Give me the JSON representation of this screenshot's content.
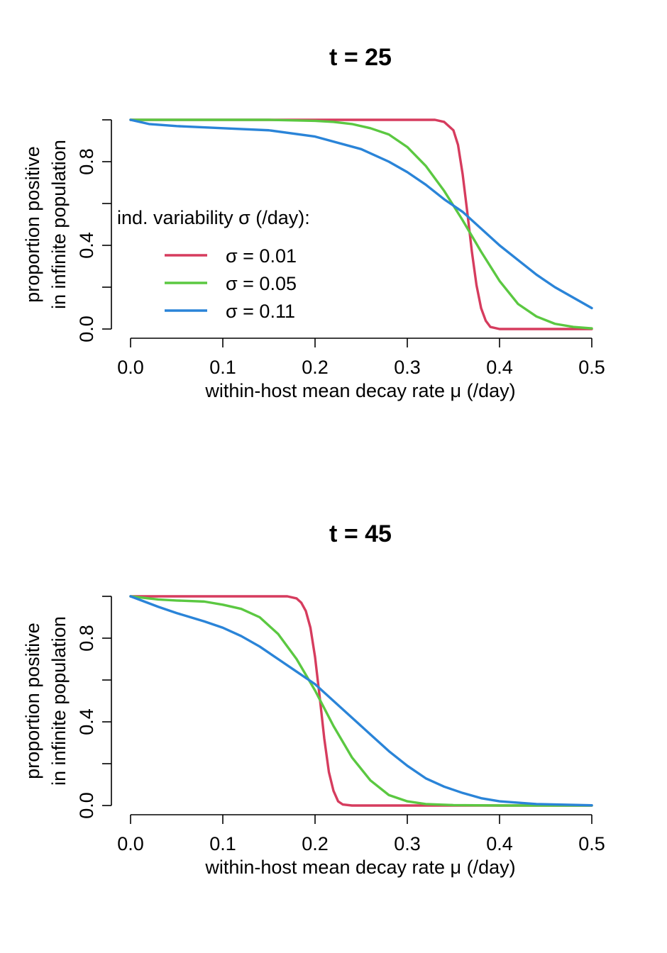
{
  "chart_data": [
    {
      "type": "line",
      "title": "t = 25",
      "xlabel": "within-host mean decay rate μ (/day)",
      "ylabel_lines": [
        "proportion positive",
        "in infinite population"
      ],
      "xlim": [
        0,
        0.5
      ],
      "ylim": [
        0,
        1
      ],
      "x_ticks": [
        0.0,
        0.1,
        0.2,
        0.3,
        0.4,
        0.5
      ],
      "x_tick_labels": [
        "0.0",
        "0.1",
        "0.2",
        "0.3",
        "0.4",
        "0.5"
      ],
      "y_ticks": [
        0.0,
        0.2,
        0.4,
        0.6,
        0.8,
        1.0
      ],
      "y_tick_labels": [
        "0.0",
        "",
        "0.4",
        "",
        "0.8",
        ""
      ],
      "legend": {
        "title": "ind. variability σ (/day):",
        "position": "left-middle",
        "entries": [
          "σ = 0.01",
          "σ = 0.05",
          "σ = 0.11"
        ]
      },
      "series": [
        {
          "name": "σ = 0.01",
          "color": "#D63C5E",
          "x": [
            0,
            0.05,
            0.1,
            0.15,
            0.2,
            0.25,
            0.3,
            0.33,
            0.34,
            0.35,
            0.355,
            0.36,
            0.365,
            0.37,
            0.375,
            0.38,
            0.385,
            0.39,
            0.4,
            0.45,
            0.5
          ],
          "y": [
            1.0,
            1.0,
            1.0,
            1.0,
            1.0,
            1.0,
            1.0,
            1.0,
            0.99,
            0.95,
            0.88,
            0.74,
            0.56,
            0.37,
            0.21,
            0.1,
            0.04,
            0.01,
            0.0,
            0.0,
            0.0
          ]
        },
        {
          "name": "σ = 0.05",
          "color": "#5BC841",
          "x": [
            0,
            0.05,
            0.1,
            0.15,
            0.2,
            0.22,
            0.24,
            0.26,
            0.28,
            0.3,
            0.32,
            0.34,
            0.36,
            0.38,
            0.4,
            0.42,
            0.44,
            0.46,
            0.48,
            0.5
          ],
          "y": [
            1.0,
            1.0,
            1.0,
            1.0,
            0.995,
            0.99,
            0.98,
            0.96,
            0.93,
            0.87,
            0.78,
            0.66,
            0.52,
            0.37,
            0.23,
            0.12,
            0.06,
            0.025,
            0.01,
            0.003
          ]
        },
        {
          "name": "σ = 0.11",
          "color": "#2A84D8",
          "x": [
            0,
            0.02,
            0.05,
            0.1,
            0.15,
            0.2,
            0.25,
            0.28,
            0.3,
            0.32,
            0.34,
            0.36,
            0.38,
            0.4,
            0.42,
            0.44,
            0.46,
            0.48,
            0.5
          ],
          "y": [
            1.0,
            0.98,
            0.97,
            0.96,
            0.95,
            0.92,
            0.86,
            0.8,
            0.75,
            0.69,
            0.62,
            0.56,
            0.48,
            0.4,
            0.33,
            0.26,
            0.2,
            0.15,
            0.1
          ]
        }
      ]
    },
    {
      "type": "line",
      "title": "t = 45",
      "xlabel": "within-host mean decay rate μ (/day)",
      "ylabel_lines": [
        "proportion positive",
        "in infinite population"
      ],
      "xlim": [
        0,
        0.5
      ],
      "ylim": [
        0,
        1
      ],
      "x_ticks": [
        0.0,
        0.1,
        0.2,
        0.3,
        0.4,
        0.5
      ],
      "x_tick_labels": [
        "0.0",
        "0.1",
        "0.2",
        "0.3",
        "0.4",
        "0.5"
      ],
      "y_ticks": [
        0.0,
        0.2,
        0.4,
        0.6,
        0.8,
        1.0
      ],
      "y_tick_labels": [
        "0.0",
        "",
        "0.4",
        "",
        "0.8",
        ""
      ],
      "series": [
        {
          "name": "σ = 0.01",
          "color": "#D63C5E",
          "x": [
            0,
            0.05,
            0.1,
            0.15,
            0.17,
            0.18,
            0.185,
            0.19,
            0.195,
            0.2,
            0.205,
            0.21,
            0.215,
            0.22,
            0.225,
            0.23,
            0.24,
            0.3,
            0.4,
            0.5
          ],
          "y": [
            1.0,
            1.0,
            1.0,
            1.0,
            1.0,
            0.99,
            0.97,
            0.93,
            0.85,
            0.71,
            0.52,
            0.32,
            0.16,
            0.07,
            0.02,
            0.005,
            0.0,
            0.0,
            0.0,
            0.0
          ]
        },
        {
          "name": "σ = 0.05",
          "color": "#5BC841",
          "x": [
            0,
            0.03,
            0.05,
            0.08,
            0.1,
            0.12,
            0.14,
            0.16,
            0.18,
            0.2,
            0.22,
            0.24,
            0.26,
            0.28,
            0.3,
            0.32,
            0.35,
            0.4,
            0.45,
            0.5
          ],
          "y": [
            1.0,
            0.985,
            0.98,
            0.975,
            0.96,
            0.94,
            0.9,
            0.82,
            0.7,
            0.55,
            0.38,
            0.23,
            0.12,
            0.05,
            0.02,
            0.007,
            0.002,
            0.0,
            0.0,
            0.0
          ]
        },
        {
          "name": "σ = 0.11",
          "color": "#2A84D8",
          "x": [
            0,
            0.03,
            0.05,
            0.08,
            0.1,
            0.12,
            0.14,
            0.16,
            0.18,
            0.2,
            0.22,
            0.24,
            0.26,
            0.28,
            0.3,
            0.32,
            0.34,
            0.36,
            0.38,
            0.4,
            0.44,
            0.5
          ],
          "y": [
            1.0,
            0.95,
            0.92,
            0.88,
            0.85,
            0.81,
            0.76,
            0.7,
            0.64,
            0.58,
            0.5,
            0.42,
            0.34,
            0.26,
            0.19,
            0.13,
            0.09,
            0.06,
            0.035,
            0.02,
            0.007,
            0.001
          ]
        }
      ]
    }
  ]
}
